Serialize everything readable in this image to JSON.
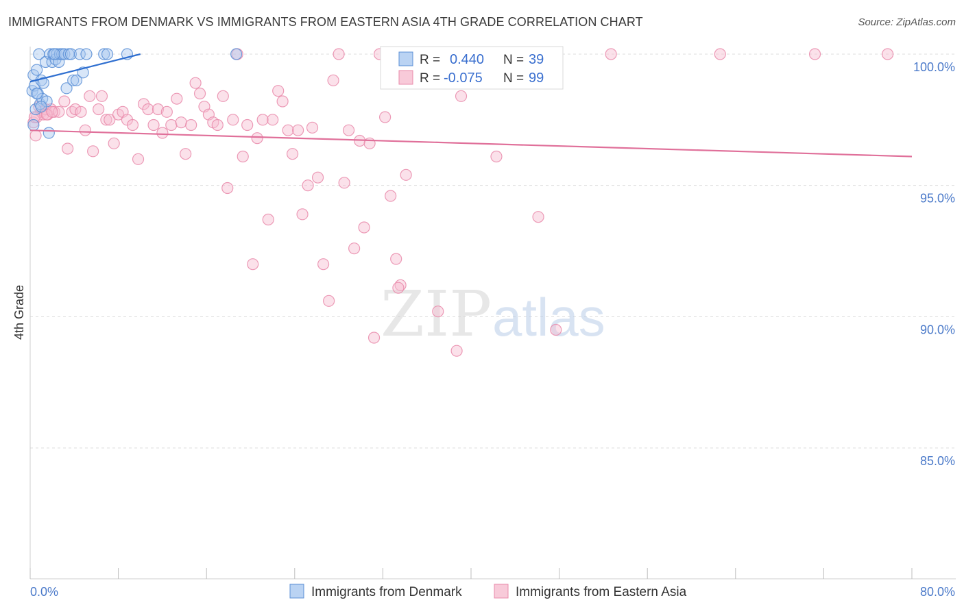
{
  "title": "IMMIGRANTS FROM DENMARK VS IMMIGRANTS FROM EASTERN ASIA 4TH GRADE CORRELATION CHART",
  "source": "Source: ZipAtlas.com",
  "watermark": {
    "zip": "ZIP",
    "atlas": "atlas"
  },
  "colors": {
    "denmark_fill": "#a9c8f0",
    "denmark_stroke": "#5b8fd6",
    "denmark_line": "#2f6fd0",
    "asia_fill": "#f6bdd0",
    "asia_stroke": "#e98aaa",
    "asia_line": "#e0709a",
    "tick_text": "#4a79c9",
    "grid": "#dcdcdc"
  },
  "stats": {
    "r_label": "R =",
    "n_label": "N =",
    "denmark": {
      "r": "0.440",
      "n": "39"
    },
    "asia": {
      "r": "-0.075",
      "n": "99"
    }
  },
  "chart_data": {
    "type": "scatter",
    "xlabel": "",
    "ylabel": "4th Grade",
    "xlim": [
      0,
      80
    ],
    "ylim": [
      80.5,
      100.8
    ],
    "x_tick_labels": [
      "0.0%",
      "80.0%"
    ],
    "y_ticks": [
      100,
      95,
      90,
      85
    ],
    "y_tick_labels": [
      "100.0%",
      "95.0%",
      "90.0%",
      "85.0%"
    ],
    "grid": true,
    "legend_position": "bottom-center",
    "series": [
      {
        "name": "Immigrants from Denmark",
        "trend": [
          [
            0.0,
            98.95
          ],
          [
            10.0,
            100.0
          ]
        ],
        "points": [
          [
            0.2,
            98.6
          ],
          [
            0.3,
            99.2
          ],
          [
            0.4,
            98.8
          ],
          [
            0.5,
            97.9
          ],
          [
            0.6,
            99.4
          ],
          [
            0.7,
            98.5
          ],
          [
            0.8,
            100.0
          ],
          [
            0.9,
            98.1
          ],
          [
            1.0,
            99.0
          ],
          [
            1.1,
            98.3
          ],
          [
            1.2,
            98.9
          ],
          [
            1.4,
            99.7
          ],
          [
            1.5,
            98.2
          ],
          [
            1.7,
            97.0
          ],
          [
            1.8,
            100.0
          ],
          [
            2.0,
            99.7
          ],
          [
            2.1,
            100.0
          ],
          [
            2.3,
            99.8
          ],
          [
            2.4,
            100.0
          ],
          [
            2.6,
            99.7
          ],
          [
            2.7,
            100.0
          ],
          [
            2.9,
            100.0
          ],
          [
            3.1,
            100.0
          ],
          [
            3.3,
            98.7
          ],
          [
            3.5,
            100.0
          ],
          [
            3.7,
            100.0
          ],
          [
            3.9,
            99.0
          ],
          [
            4.2,
            99.0
          ],
          [
            4.5,
            100.0
          ],
          [
            4.8,
            99.3
          ],
          [
            5.1,
            100.0
          ],
          [
            6.7,
            100.0
          ],
          [
            7.0,
            100.0
          ],
          [
            8.8,
            100.0
          ],
          [
            18.7,
            100.0
          ],
          [
            0.3,
            97.3
          ],
          [
            1.0,
            98.0
          ],
          [
            0.6,
            98.5
          ],
          [
            2.2,
            100.0
          ]
        ]
      },
      {
        "name": "Immigrants from Eastern Asia",
        "trend": [
          [
            0.0,
            97.1
          ],
          [
            80.0,
            96.1
          ]
        ],
        "points": [
          [
            0.3,
            97.4
          ],
          [
            0.6,
            97.6
          ],
          [
            0.8,
            98.0
          ],
          [
            1.0,
            97.8
          ],
          [
            1.2,
            97.7
          ],
          [
            1.4,
            97.9
          ],
          [
            1.6,
            97.7
          ],
          [
            1.9,
            97.9
          ],
          [
            2.2,
            97.8
          ],
          [
            2.6,
            97.8
          ],
          [
            3.1,
            98.2
          ],
          [
            3.4,
            96.4
          ],
          [
            3.8,
            97.8
          ],
          [
            4.1,
            97.9
          ],
          [
            4.6,
            97.8
          ],
          [
            5.0,
            97.1
          ],
          [
            5.4,
            98.4
          ],
          [
            5.7,
            96.3
          ],
          [
            6.2,
            97.9
          ],
          [
            6.5,
            98.4
          ],
          [
            6.9,
            97.5
          ],
          [
            7.2,
            97.5
          ],
          [
            7.6,
            96.6
          ],
          [
            8.0,
            97.7
          ],
          [
            8.4,
            97.8
          ],
          [
            8.8,
            97.5
          ],
          [
            9.3,
            97.3
          ],
          [
            9.8,
            96.0
          ],
          [
            10.3,
            98.1
          ],
          [
            10.7,
            97.9
          ],
          [
            11.2,
            97.3
          ],
          [
            11.6,
            97.9
          ],
          [
            12.0,
            97.0
          ],
          [
            12.4,
            97.8
          ],
          [
            12.8,
            97.3
          ],
          [
            13.3,
            98.3
          ],
          [
            13.7,
            97.4
          ],
          [
            14.1,
            96.2
          ],
          [
            14.6,
            97.3
          ],
          [
            15.0,
            98.9
          ],
          [
            15.4,
            98.5
          ],
          [
            15.8,
            98.0
          ],
          [
            16.2,
            97.7
          ],
          [
            16.6,
            97.4
          ],
          [
            17.0,
            97.3
          ],
          [
            17.5,
            98.4
          ],
          [
            17.9,
            94.9
          ],
          [
            18.4,
            97.5
          ],
          [
            18.8,
            100.0
          ],
          [
            19.3,
            96.1
          ],
          [
            19.7,
            97.3
          ],
          [
            20.2,
            92.0
          ],
          [
            20.6,
            96.8
          ],
          [
            21.1,
            97.5
          ],
          [
            21.6,
            93.7
          ],
          [
            22.0,
            97.5
          ],
          [
            22.5,
            98.6
          ],
          [
            22.9,
            98.2
          ],
          [
            23.4,
            97.1
          ],
          [
            23.8,
            96.2
          ],
          [
            24.3,
            97.1
          ],
          [
            24.7,
            93.9
          ],
          [
            25.2,
            95.0
          ],
          [
            25.6,
            97.2
          ],
          [
            26.1,
            95.3
          ],
          [
            26.6,
            92.0
          ],
          [
            27.1,
            90.6
          ],
          [
            27.5,
            99.0
          ],
          [
            28.0,
            100.0
          ],
          [
            28.5,
            95.1
          ],
          [
            28.9,
            97.1
          ],
          [
            29.4,
            92.6
          ],
          [
            29.9,
            96.7
          ],
          [
            30.3,
            93.4
          ],
          [
            30.8,
            96.6
          ],
          [
            31.2,
            89.2
          ],
          [
            31.7,
            100.0
          ],
          [
            32.2,
            97.6
          ],
          [
            32.7,
            94.6
          ],
          [
            33.2,
            92.2
          ],
          [
            33.6,
            91.2
          ],
          [
            34.1,
            95.4
          ],
          [
            37.0,
            90.2
          ],
          [
            38.7,
            88.7
          ],
          [
            39.1,
            98.4
          ],
          [
            42.3,
            96.1
          ],
          [
            45.0,
            100.0
          ],
          [
            46.1,
            93.8
          ],
          [
            47.7,
            89.5
          ],
          [
            52.7,
            100.0
          ],
          [
            62.6,
            100.0
          ],
          [
            71.2,
            100.0
          ],
          [
            77.8,
            100.0
          ],
          [
            33.4,
            91.1
          ],
          [
            39.0,
            100.0
          ],
          [
            0.4,
            97.6
          ],
          [
            1.5,
            97.7
          ],
          [
            2.0,
            97.8
          ],
          [
            0.5,
            96.9
          ]
        ]
      }
    ]
  },
  "legend": {
    "items": [
      {
        "label": "Immigrants from Denmark"
      },
      {
        "label": "Immigrants from Eastern Asia"
      }
    ]
  }
}
